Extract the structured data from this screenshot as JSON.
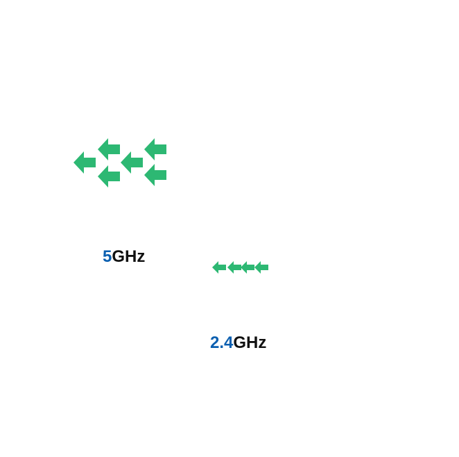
{
  "colors": {
    "arrow": "#2db873",
    "band_number": "#0b5fb0",
    "band_unit": "#111111",
    "background": "#ffffff"
  },
  "bands": {
    "five": {
      "number": "5",
      "unit": "GHz",
      "arrow_count": 6,
      "arrow_icon": "arrow-left-icon"
    },
    "two_four": {
      "number": "2.4",
      "unit": "GHz",
      "arrow_count": 4,
      "arrow_icon": "arrow-left-icon"
    }
  }
}
